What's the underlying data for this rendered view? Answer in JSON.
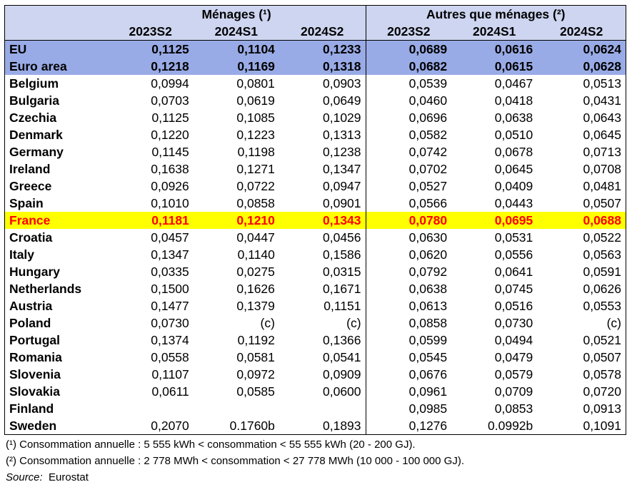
{
  "header": {
    "group1": "Ménages (¹)",
    "group2": "Autres que ménages (²)",
    "periods": [
      "2023S2",
      "2024S1",
      "2024S2",
      "2023S2",
      "2024S1",
      "2024S2"
    ]
  },
  "rows": [
    {
      "name": "EU",
      "style": "agg",
      "values": [
        "0,1125",
        "0,1104",
        "0,1233",
        "0,0689",
        "0,0616",
        "0,0624"
      ]
    },
    {
      "name": "Euro area",
      "style": "agg",
      "values": [
        "0,1218",
        "0,1169",
        "0,1318",
        "0,0682",
        "0,0615",
        "0,0628"
      ]
    },
    {
      "name": "Belgium",
      "style": "",
      "values": [
        "0,0994",
        "0,0801",
        "0,0903",
        "0,0539",
        "0,0467",
        "0,0513"
      ]
    },
    {
      "name": "Bulgaria",
      "style": "",
      "values": [
        "0,0703",
        "0,0619",
        "0,0649",
        "0,0460",
        "0,0418",
        "0,0431"
      ]
    },
    {
      "name": "Czechia",
      "style": "",
      "values": [
        "0,1125",
        "0,1085",
        "0,1029",
        "0,0696",
        "0,0638",
        "0,0643"
      ]
    },
    {
      "name": "Denmark",
      "style": "",
      "values": [
        "0,1220",
        "0,1223",
        "0,1313",
        "0,0582",
        "0,0510",
        "0,0645"
      ]
    },
    {
      "name": "Germany",
      "style": "",
      "values": [
        "0,1145",
        "0,1198",
        "0,1238",
        "0,0742",
        "0,0678",
        "0,0713"
      ]
    },
    {
      "name": "Ireland",
      "style": "",
      "values": [
        "0,1638",
        "0,1271",
        "0,1347",
        "0,0702",
        "0,0645",
        "0,0708"
      ]
    },
    {
      "name": "Greece",
      "style": "",
      "values": [
        "0,0926",
        "0,0722",
        "0,0947",
        "0,0527",
        "0,0409",
        "0,0481"
      ]
    },
    {
      "name": "Spain",
      "style": "",
      "values": [
        "0,1010",
        "0,0858",
        "0,0901",
        "0,0566",
        "0,0443",
        "0,0507"
      ]
    },
    {
      "name": "France",
      "style": "hl",
      "values": [
        "0,1181",
        "0,1210",
        "0,1343",
        "0,0780",
        "0,0695",
        "0,0688"
      ]
    },
    {
      "name": "Croatia",
      "style": "",
      "values": [
        "0,0457",
        "0,0447",
        "0,0456",
        "0,0630",
        "0,0531",
        "0,0522"
      ]
    },
    {
      "name": "Italy",
      "style": "",
      "values": [
        "0,1347",
        "0,1140",
        "0,1586",
        "0,0620",
        "0,0556",
        "0,0563"
      ]
    },
    {
      "name": "Hungary",
      "style": "",
      "values": [
        "0,0335",
        "0,0275",
        "0,0315",
        "0,0792",
        "0,0641",
        "0,0591"
      ]
    },
    {
      "name": "Netherlands",
      "style": "",
      "values": [
        "0,1500",
        "0,1626",
        "0,1671",
        "0,0638",
        "0,0745",
        "0,0626"
      ]
    },
    {
      "name": "Austria",
      "style": "",
      "values": [
        "0,1477",
        "0,1379",
        "0,1151",
        "0,0613",
        "0,0516",
        "0,0553"
      ]
    },
    {
      "name": "Poland",
      "style": "",
      "values": [
        "0,0730",
        "(c)",
        "(c)",
        "0,0858",
        "0,0730",
        "(c)"
      ]
    },
    {
      "name": "Portugal",
      "style": "",
      "values": [
        "0,1374",
        "0,1192",
        "0,1366",
        "0,0599",
        "0,0494",
        "0,0521"
      ]
    },
    {
      "name": "Romania",
      "style": "",
      "values": [
        "0,0558",
        "0,0581",
        "0,0541",
        "0,0545",
        "0,0479",
        "0,0507"
      ]
    },
    {
      "name": "Slovenia",
      "style": "",
      "values": [
        "0,1107",
        "0,0972",
        "0,0909",
        "0,0676",
        "0,0579",
        "0,0578"
      ]
    },
    {
      "name": "Slovakia",
      "style": "",
      "values": [
        "0,0611",
        "0,0585",
        "0,0600",
        "0,0961",
        "0,0709",
        "0,0720"
      ]
    },
    {
      "name": "Finland",
      "style": "",
      "values": [
        "",
        "",
        "",
        "0,0985",
        "0,0853",
        "0,0913"
      ]
    },
    {
      "name": "Sweden",
      "style": "",
      "values": [
        "0,2070",
        "0.1760b",
        "0,1893",
        "0,1276",
        "0.0992b",
        "0,1091"
      ]
    }
  ],
  "notes": {
    "note1": "(¹) Consommation annuelle : 5 555 kWh < consommation < 55 555 kWh (20 - 200 GJ).",
    "note2": "(²) Consommation annuelle : 2 778 MWh < consommation < 27 778 MWh (10 000 - 100 000 GJ).",
    "source_label": "Source:",
    "source_value": "Eurostat"
  }
}
